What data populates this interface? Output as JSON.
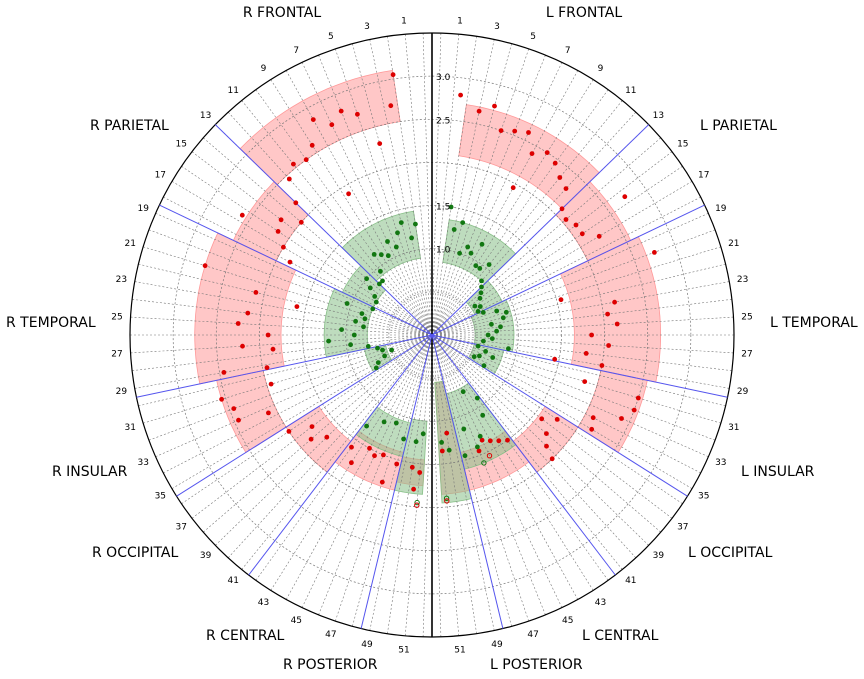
{
  "chart_data": {
    "type": "scatter",
    "subtype": "polar",
    "grid": true,
    "radial_ticks": [
      1.0,
      1.5,
      2.5,
      3.0
    ],
    "radial_range": [
      0,
      3.5
    ],
    "angular_ticks": [
      1,
      3,
      5,
      7,
      9,
      11,
      13,
      15,
      17,
      19,
      21,
      23,
      25,
      27,
      29,
      31,
      33,
      35,
      37,
      39,
      41,
      43,
      45,
      47,
      49,
      51
    ],
    "regions": [
      {
        "name": "R FRONTAL"
      },
      {
        "name": "R PARIETAL"
      },
      {
        "name": "R TEMPORAL"
      },
      {
        "name": "R INSULAR"
      },
      {
        "name": "R OCCIPITAL"
      },
      {
        "name": "R CENTRAL"
      },
      {
        "name": "R POSTERIOR"
      },
      {
        "name": "L FRONTAL"
      },
      {
        "name": "L PARIETAL"
      },
      {
        "name": "L TEMPORAL"
      },
      {
        "name": "L INSULAR"
      },
      {
        "name": "L OCCIPITAL"
      },
      {
        "name": "L CENTRAL"
      },
      {
        "name": "L POSTERIOR"
      }
    ],
    "region_boundaries_index": [
      13,
      18.5,
      29.5,
      35.5,
      41.5,
      48.5
    ],
    "colors": {
      "red": "#dd0000",
      "green": "#117711",
      "red_band": "#ff9999",
      "green_band": "#88c088",
      "divider": "#5555ee"
    },
    "bands": [
      {
        "side": "R",
        "color": "red",
        "idx": [
          2,
          13
        ],
        "r": [
          2.5,
          3.1
        ]
      },
      {
        "side": "R",
        "color": "red",
        "idx": [
          13,
          18.5
        ],
        "r": [
          2.0,
          2.55
        ]
      },
      {
        "side": "R",
        "color": "red",
        "idx": [
          18.5,
          29.5
        ],
        "r": [
          1.75,
          2.75
        ]
      },
      {
        "side": "R",
        "color": "red",
        "idx": [
          29.5,
          35.5
        ],
        "r": [
          2.0,
          2.55
        ]
      },
      {
        "side": "R",
        "color": "red",
        "idx": [
          35.5,
          41.5
        ],
        "r": [
          1.55,
          2.0
        ]
      },
      {
        "side": "R",
        "color": "red",
        "idx": [
          41.5,
          48.5
        ],
        "r": [
          1.4,
          1.85
        ]
      },
      {
        "side": "R",
        "color": "red",
        "idx": [
          48.5,
          51.5
        ],
        "r": [
          1.45,
          1.75
        ]
      },
      {
        "side": "R",
        "color": "green",
        "idx": [
          2,
          13
        ],
        "r": [
          0.9,
          1.45
        ]
      },
      {
        "side": "R",
        "color": "green",
        "idx": [
          13,
          18.5
        ],
        "r": [
          0.75,
          1.15
        ]
      },
      {
        "side": "R",
        "color": "green",
        "idx": [
          18.5,
          29.5
        ],
        "r": [
          0.75,
          1.25
        ]
      },
      {
        "side": "R",
        "color": "green",
        "idx": [
          29.5,
          35.5
        ],
        "r": [
          0.55,
          0.8
        ]
      },
      {
        "side": "R",
        "color": "green",
        "idx": [
          41.5,
          48.5
        ],
        "r": [
          1.05,
          1.45
        ]
      },
      {
        "side": "R",
        "color": "green",
        "idx": [
          48.5,
          51.5
        ],
        "r": [
          1.0,
          1.85
        ]
      },
      {
        "side": "L",
        "color": "red",
        "idx": [
          2,
          13
        ],
        "r": [
          2.1,
          2.7
        ]
      },
      {
        "side": "L",
        "color": "red",
        "idx": [
          13,
          18.5
        ],
        "r": [
          2.0,
          2.55
        ]
      },
      {
        "side": "L",
        "color": "red",
        "idx": [
          18.5,
          29.5
        ],
        "r": [
          1.65,
          2.65
        ]
      },
      {
        "side": "L",
        "color": "red",
        "idx": [
          29.5,
          35.5
        ],
        "r": [
          2.0,
          2.55
        ]
      },
      {
        "side": "L",
        "color": "red",
        "idx": [
          35.5,
          41.5
        ],
        "r": [
          1.55,
          2.0
        ]
      },
      {
        "side": "L",
        "color": "red",
        "idx": [
          41.5,
          48.5
        ],
        "r": [
          1.4,
          1.85
        ]
      },
      {
        "side": "L",
        "color": "red",
        "idx": [
          48.5,
          51.5
        ],
        "r": [
          0.55,
          1.85
        ]
      },
      {
        "side": "L",
        "color": "green",
        "idx": [
          2,
          13
        ],
        "r": [
          0.85,
          1.35
        ]
      },
      {
        "side": "L",
        "color": "green",
        "idx": [
          13,
          18.5
        ],
        "r": [
          0.55,
          0.9
        ]
      },
      {
        "side": "L",
        "color": "green",
        "idx": [
          18.5,
          29.5
        ],
        "r": [
          0.5,
          0.95
        ]
      },
      {
        "side": "L",
        "color": "green",
        "idx": [
          29.5,
          35.5
        ],
        "r": [
          0.5,
          0.85
        ]
      },
      {
        "side": "L",
        "color": "green",
        "idx": [
          41.5,
          48.5
        ],
        "r": [
          0.7,
          1.6
        ]
      },
      {
        "side": "L",
        "color": "green",
        "idx": [
          48.5,
          51.5
        ],
        "r": [
          0.55,
          1.95
        ]
      }
    ],
    "red_points": {
      "R": [
        [
          2,
          3.05
        ],
        [
          2.5,
          2.7
        ],
        [
          4,
          2.3
        ],
        [
          5,
          2.7
        ],
        [
          6,
          2.8
        ],
        [
          7,
          2.7
        ],
        [
          8,
          2.85
        ],
        [
          9,
          2.6
        ],
        [
          10,
          2.5
        ],
        [
          11,
          2.55
        ],
        [
          12,
          2.45
        ],
        [
          13,
          2.2
        ],
        [
          8.5,
          1.9
        ],
        [
          14,
          2.0
        ],
        [
          15,
          2.2
        ],
        [
          16,
          2.15
        ],
        [
          17,
          2.0
        ],
        [
          18,
          1.85
        ],
        [
          16.5,
          2.6
        ],
        [
          21,
          2.75
        ],
        [
          22,
          2.1
        ],
        [
          22.5,
          1.6
        ],
        [
          24,
          2.15
        ],
        [
          25,
          2.25
        ],
        [
          26,
          1.9
        ],
        [
          27,
          2.2
        ],
        [
          27.5,
          1.85
        ],
        [
          29,
          2.45
        ],
        [
          29.3,
          1.95
        ],
        [
          31,
          2.55
        ],
        [
          32,
          2.45
        ],
        [
          33,
          2.45
        ],
        [
          33.5,
          2.1
        ],
        [
          31,
          1.95
        ],
        [
          36,
          2.0
        ],
        [
          37,
          1.75
        ],
        [
          38,
          1.85
        ],
        [
          39,
          1.7
        ],
        [
          42,
          1.6
        ],
        [
          43,
          1.75
        ],
        [
          44,
          1.5
        ],
        [
          45,
          1.55
        ],
        [
          46,
          1.5
        ],
        [
          47,
          1.8
        ],
        [
          48,
          1.55
        ],
        [
          50,
          1.55
        ],
        [
          51,
          1.6
        ],
        [
          50.5,
          1.8
        ]
      ],
      "L": [
        [
          1.5,
          2.8
        ],
        [
          3,
          2.65
        ],
        [
          4,
          2.75
        ],
        [
          5,
          2.5
        ],
        [
          6,
          2.55
        ],
        [
          7,
          2.6
        ],
        [
          8,
          2.4
        ],
        [
          9,
          2.5
        ],
        [
          10,
          2.45
        ],
        [
          11,
          2.35
        ],
        [
          12,
          2.3
        ],
        [
          13,
          2.1
        ],
        [
          8,
          1.95
        ],
        [
          14,
          2.05
        ],
        [
          15,
          2.1
        ],
        [
          16,
          2.1
        ],
        [
          17,
          2.25
        ],
        [
          15.5,
          2.75
        ],
        [
          20,
          2.75
        ],
        [
          21.5,
          1.55
        ],
        [
          23,
          2.15
        ],
        [
          24,
          2.05
        ],
        [
          25,
          2.15
        ],
        [
          26,
          1.85
        ],
        [
          27,
          2.05
        ],
        [
          28,
          1.8
        ],
        [
          29,
          2.0
        ],
        [
          29.3,
          1.45
        ],
        [
          31,
          2.5
        ],
        [
          32,
          2.5
        ],
        [
          33,
          2.4
        ],
        [
          34,
          2.1
        ],
        [
          35,
          2.15
        ],
        [
          31,
          1.85
        ],
        [
          36,
          1.75
        ],
        [
          37,
          1.6
        ],
        [
          38,
          1.75
        ],
        [
          39,
          1.85
        ],
        [
          39.5,
          2.0
        ],
        [
          42,
          1.5
        ],
        [
          43,
          1.45
        ],
        [
          44,
          1.4
        ],
        [
          45,
          1.35
        ],
        [
          46,
          1.45
        ],
        [
          50,
          1.15
        ],
        [
          51,
          1.35
        ]
      ]
    },
    "green_points": {
      "R": [
        [
          2,
          1.3
        ],
        [
          3,
          1.15
        ],
        [
          4,
          1.35
        ],
        [
          5,
          1.25
        ],
        [
          6,
          1.1
        ],
        [
          7,
          1.2
        ],
        [
          8,
          1.05
        ],
        [
          9,
          1.1
        ],
        [
          10,
          1.15
        ],
        [
          11,
          0.95
        ],
        [
          12,
          0.85
        ],
        [
          13,
          0.85
        ],
        [
          14,
          1.0
        ],
        [
          15,
          0.9
        ],
        [
          16,
          0.8
        ],
        [
          17,
          0.75
        ],
        [
          19,
          0.75
        ],
        [
          20,
          1.05
        ],
        [
          21,
          0.85
        ],
        [
          22,
          0.8
        ],
        [
          23,
          0.9
        ],
        [
          24,
          0.8
        ],
        [
          25,
          1.05
        ],
        [
          26,
          0.9
        ],
        [
          27,
          1.2
        ],
        [
          28,
          0.95
        ],
        [
          29,
          0.75
        ],
        [
          30,
          0.65
        ],
        [
          31,
          0.6
        ],
        [
          32,
          0.5
        ],
        [
          33,
          0.6
        ],
        [
          34,
          0.7
        ],
        [
          35,
          0.75
        ],
        [
          42,
          1.3
        ],
        [
          44,
          1.15
        ],
        [
          46,
          1.1
        ],
        [
          48,
          1.25
        ],
        [
          50,
          1.25
        ],
        [
          51,
          1.15
        ]
      ],
      "L": [
        [
          2,
          1.5
        ],
        [
          3,
          1.25
        ],
        [
          4,
          1.35
        ],
        [
          5,
          1.0
        ],
        [
          6,
          1.1
        ],
        [
          7,
          1.05
        ],
        [
          8,
          1.2
        ],
        [
          9,
          0.95
        ],
        [
          10,
          0.95
        ],
        [
          11,
          1.05
        ],
        [
          12,
          0.85
        ],
        [
          13,
          0.8
        ],
        [
          14,
          0.75
        ],
        [
          15,
          0.7
        ],
        [
          16,
          0.6
        ],
        [
          17,
          0.65
        ],
        [
          18,
          0.6
        ],
        [
          19,
          0.65
        ],
        [
          20,
          0.8
        ],
        [
          21,
          0.9
        ],
        [
          22,
          0.85
        ],
        [
          23,
          0.7
        ],
        [
          24,
          0.8
        ],
        [
          25,
          0.75
        ],
        [
          26,
          0.65
        ],
        [
          27,
          0.7
        ],
        [
          28,
          0.6
        ],
        [
          29,
          0.9
        ],
        [
          30,
          0.55
        ],
        [
          31,
          0.65
        ],
        [
          32,
          0.75
        ],
        [
          33,
          0.6
        ],
        [
          34,
          0.55
        ],
        [
          35,
          0.7
        ],
        [
          42,
          0.9
        ],
        [
          43,
          1.1
        ],
        [
          44,
          0.75
        ],
        [
          45,
          1.3
        ],
        [
          46,
          1.4
        ],
        [
          47,
          1.15
        ],
        [
          48,
          1.45
        ],
        [
          50,
          1.35
        ],
        [
          51,
          1.25
        ]
      ]
    },
    "hollow_points": [
      {
        "side": "R",
        "idx": 51,
        "r": 1.95,
        "color": "green"
      },
      {
        "side": "R",
        "idx": 51,
        "r": 1.98,
        "color": "red"
      },
      {
        "side": "L",
        "idx": 51,
        "r": 1.9,
        "color": "green"
      },
      {
        "side": "L",
        "idx": 51,
        "r": 1.93,
        "color": "red"
      },
      {
        "side": "L",
        "idx": 46,
        "r": 1.6,
        "color": "green"
      },
      {
        "side": "L",
        "idx": 45,
        "r": 1.55,
        "color": "red"
      }
    ]
  }
}
